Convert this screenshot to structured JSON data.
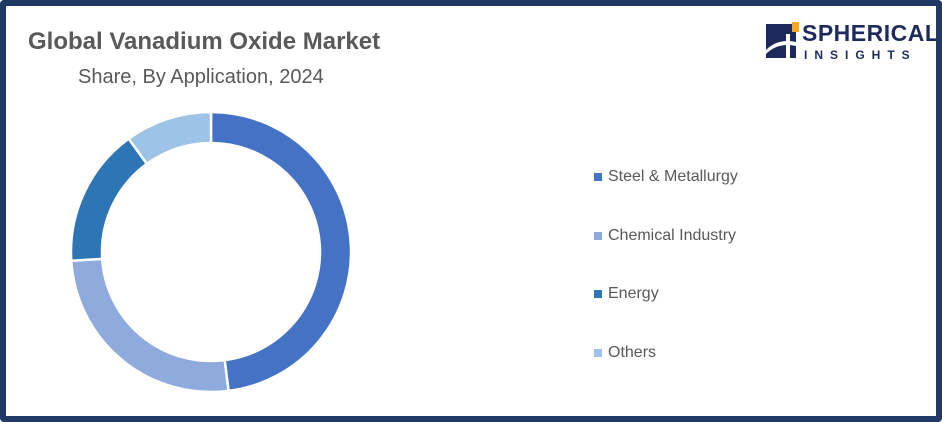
{
  "title": "Global Vanadium Oxide Market",
  "subtitle": "Share, By Application, 2024",
  "logo": {
    "main": "SPHERICAL",
    "sub": "INSIGHTS"
  },
  "chart_data": {
    "type": "pie",
    "variant": "donut",
    "title": "Global Vanadium Oxide Market",
    "subtitle": "Share, By Application, 2024",
    "categories": [
      "Steel & Metallurgy",
      "Chemical Industry",
      "Energy",
      "Others"
    ],
    "values": [
      48,
      26,
      16,
      10
    ],
    "unit": "%",
    "colors": [
      "#4472c4",
      "#8faadc",
      "#2e75b6",
      "#9dc3e6"
    ],
    "legend": "right",
    "data_labels": false
  }
}
